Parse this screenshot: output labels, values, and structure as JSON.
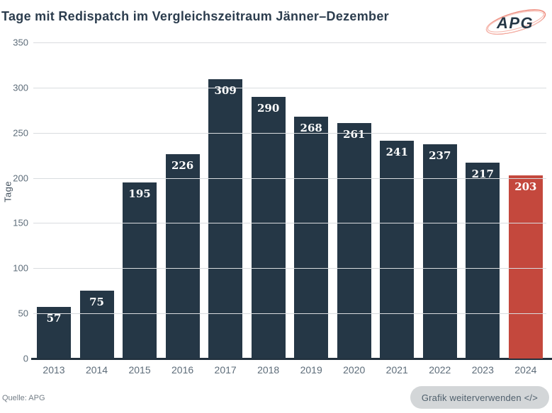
{
  "header": {
    "logo": {
      "text": "APG",
      "swoosh_color": "#ee8a7c",
      "text_color": "#253746"
    }
  },
  "chart_data": {
    "type": "bar",
    "title": "Tage mit Redispatch im Vergleichszeitraum Jänner–Dezember",
    "categories": [
      "2013",
      "2014",
      "2015",
      "2016",
      "2017",
      "2018",
      "2019",
      "2020",
      "2021",
      "2022",
      "2023",
      "2024"
    ],
    "values": [
      57,
      75,
      195,
      226,
      309,
      290,
      268,
      261,
      241,
      237,
      217,
      203
    ],
    "xlabel": "",
    "ylabel": "Tage",
    "ylim": [
      0,
      350
    ],
    "yticks": [
      0,
      50,
      100,
      150,
      200,
      250,
      300,
      350
    ],
    "grid": true,
    "legend": false,
    "value_labels": true,
    "bar_color": "#253746",
    "highlight_color": "#c4483d",
    "highlight_index": 11,
    "highlight_category": "2024"
  },
  "footer": {
    "source": "Quelle: APG",
    "reuse_button_label": "Grafik weiterverwenden </>"
  },
  "colors": {
    "title_text": "#2c3d4e",
    "axis_text": "#5d6c79",
    "gridline": "#d9dcdf",
    "baseline": "#22303d",
    "button_bg": "#d3d6d8",
    "button_text": "#50606d",
    "source_text": "#747e87"
  }
}
